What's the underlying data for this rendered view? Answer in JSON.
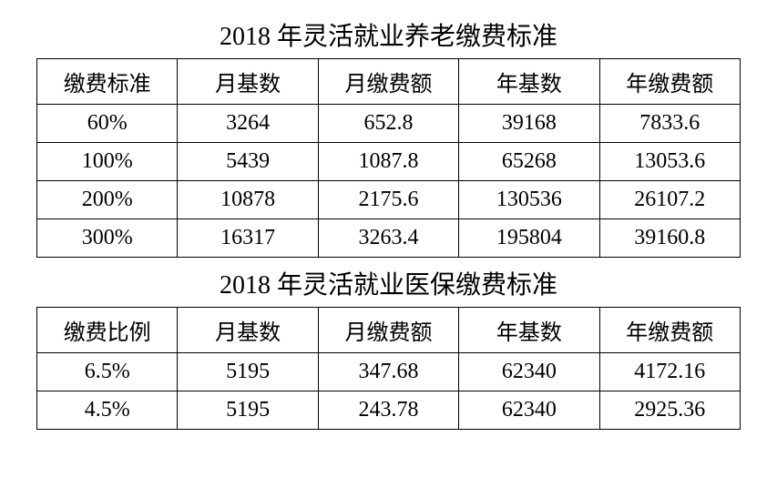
{
  "table1": {
    "title": "2018 年灵活就业养老缴费标准",
    "columns": [
      "缴费标准",
      "月基数",
      "月缴费额",
      "年基数",
      "年缴费额"
    ],
    "rows": [
      [
        "60%",
        "3264",
        "652.8",
        "39168",
        "7833.6"
      ],
      [
        "100%",
        "5439",
        "1087.8",
        "65268",
        "13053.6"
      ],
      [
        "200%",
        "10878",
        "2175.6",
        "130536",
        "26107.2"
      ],
      [
        "300%",
        "16317",
        "3263.4",
        "195804",
        "39160.8"
      ]
    ],
    "border_color": "#000000",
    "text_color": "#000000",
    "background_color": "#ffffff",
    "title_fontsize": 28,
    "cell_fontsize": 24
  },
  "table2": {
    "title": "2018 年灵活就业医保缴费标准",
    "columns": [
      "缴费比例",
      "月基数",
      "月缴费额",
      "年基数",
      "年缴费额"
    ],
    "rows": [
      [
        "6.5%",
        "5195",
        "347.68",
        "62340",
        "4172.16"
      ],
      [
        "4.5%",
        "5195",
        "243.78",
        "62340",
        "2925.36"
      ]
    ],
    "border_color": "#000000",
    "text_color": "#000000",
    "background_color": "#ffffff",
    "title_fontsize": 28,
    "cell_fontsize": 24
  }
}
